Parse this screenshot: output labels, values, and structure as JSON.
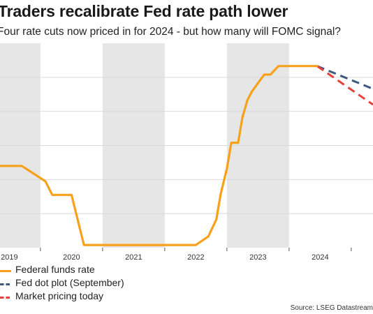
{
  "title": "Traders recalibrate Fed rate path lower",
  "subtitle": "Four rate cuts now priced in for 2024 - but how many will FOMC signal?",
  "source": "Source: LSEG Datastream",
  "colors": {
    "fed_funds": "#f7a11a",
    "dot_plot": "#3d5a80",
    "market": "#e8403b",
    "shade": "#e6e6e6",
    "grid": "#d9d9d9"
  },
  "chart_data": {
    "type": "line",
    "title": "Traders recalibrate Fed rate path lower",
    "subtitle": "Four rate cuts now priced in for 2024 - but how many will FOMC signal?",
    "x_categories": [
      "2019",
      "2020",
      "2021",
      "2022",
      "2023",
      "2024"
    ],
    "x_range": [
      2018.85,
      2024.85
    ],
    "y_range": [
      0,
      6
    ],
    "grid": "horizontal",
    "shaded_years": [
      "2019",
      "2021",
      "2023"
    ],
    "legend_position": "bottom-left",
    "series": [
      {
        "name": "Federal funds rate",
        "style": "solid",
        "color": "#f7a11a",
        "x": [
          2018.85,
          2019.2,
          2019.58,
          2019.69,
          2019.78,
          2020.0,
          2020.2,
          2021.0,
          2022.0,
          2022.2,
          2022.33,
          2022.4,
          2022.5,
          2022.57,
          2022.68,
          2022.75,
          2022.83,
          2022.9,
          2023.0,
          2023.1,
          2023.2,
          2023.33,
          2023.45,
          2023.55,
          2023.7,
          2023.95
        ],
        "y": [
          2.4,
          2.4,
          1.95,
          1.55,
          1.55,
          1.55,
          0.08,
          0.08,
          0.08,
          0.33,
          0.83,
          1.58,
          2.33,
          3.08,
          3.08,
          3.83,
          4.33,
          4.58,
          4.83,
          5.08,
          5.08,
          5.33,
          5.33,
          5.33,
          5.33,
          5.33
        ]
      },
      {
        "name": "Fed dot plot (September)",
        "style": "dashed",
        "color": "#3d5a80",
        "x": [
          2023.95,
          2024.85
        ],
        "y": [
          5.33,
          4.66
        ]
      },
      {
        "name": "Market pricing today",
        "style": "dashed",
        "color": "#e8403b",
        "x": [
          2023.95,
          2024.85
        ],
        "y": [
          5.33,
          4.2
        ]
      }
    ]
  }
}
